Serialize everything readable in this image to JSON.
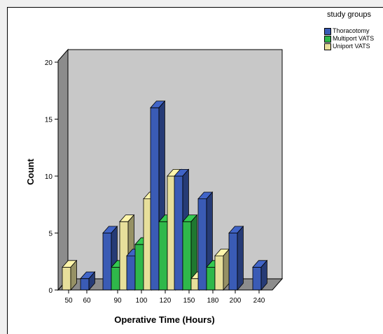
{
  "chart_data": {
    "type": "bar",
    "title": "",
    "xlabel": "Operative Time (Hours)",
    "ylabel": "Count",
    "categories": [
      "50",
      "60",
      "90",
      "100",
      "120",
      "150",
      "180",
      "200",
      "240"
    ],
    "yticks": [
      "0",
      "5",
      "10",
      "15",
      "20"
    ],
    "ylim": [
      0,
      20
    ],
    "grid": false,
    "legend": {
      "title": "study groups",
      "position": "right"
    },
    "series": [
      {
        "name": "Thoracotomy",
        "color": "#3a5bb5",
        "values": [
          0,
          1,
          5,
          3,
          16,
          10,
          8,
          5,
          2
        ]
      },
      {
        "name": "Multiport VATS",
        "color": "#2fb84a",
        "values": [
          0,
          0,
          2,
          4,
          6,
          6,
          2,
          0,
          0
        ]
      },
      {
        "name": "Uniport VATS",
        "color": "#e7df9b",
        "values": [
          2,
          0,
          6,
          8,
          10,
          1,
          3,
          0,
          0
        ]
      }
    ]
  }
}
